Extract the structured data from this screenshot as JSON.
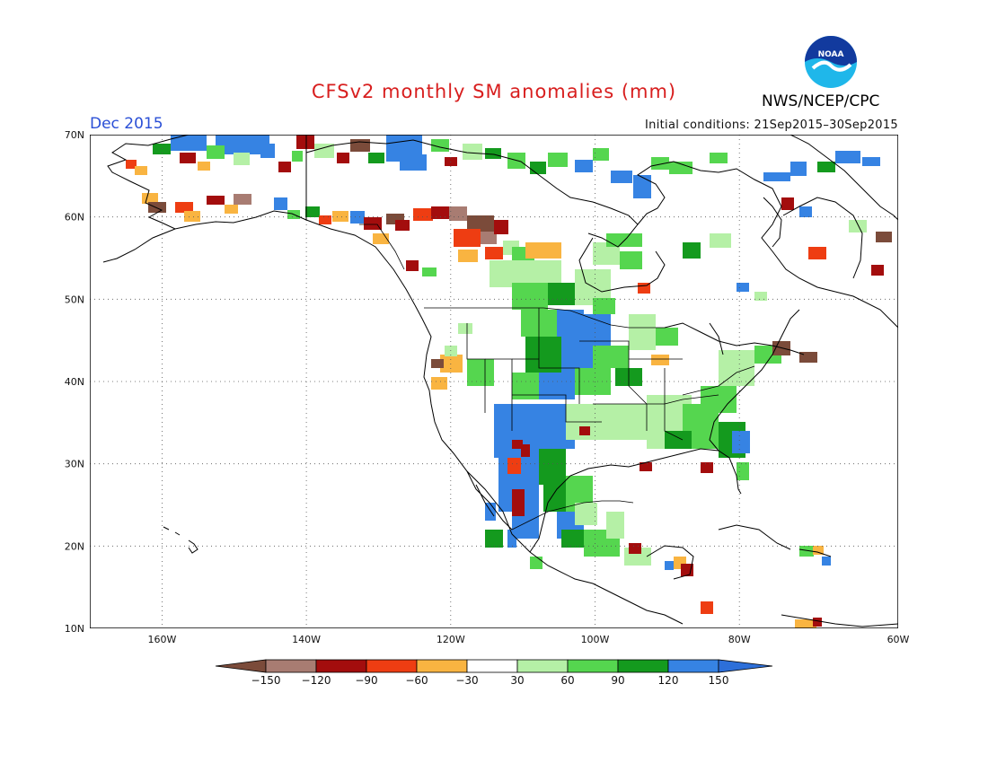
{
  "header": {
    "title": "CFSv2 monthly SM anomalies (mm)",
    "month": "Dec 2015",
    "initial_conditions": "Initial conditions: 21Sep2015–30Sep2015",
    "agency": "NWS/NCEP/CPC",
    "logo_text": "NOAA"
  },
  "map": {
    "lon_range": [
      -172,
      -60
    ],
    "lat_range": [
      10,
      70
    ],
    "lat_labels": [
      "70N",
      "60N",
      "50N",
      "40N",
      "30N",
      "20N",
      "10N"
    ],
    "lon_labels": [
      "160W",
      "140W",
      "120W",
      "100W",
      "80W",
      "60W"
    ]
  },
  "legend": {
    "labels": [
      "−150",
      "−120",
      "−90",
      "−60",
      "−30",
      "30",
      "60",
      "90",
      "120",
      "150"
    ],
    "colors": [
      "#7b4b3a",
      "#a87c72",
      "#a30d0d",
      "#ee3d12",
      "#f9b441",
      "#ffffff",
      "#b5f0a6",
      "#55d64f",
      "#149a1e",
      "#3683e3",
      "#2d6fd9"
    ]
  }
}
